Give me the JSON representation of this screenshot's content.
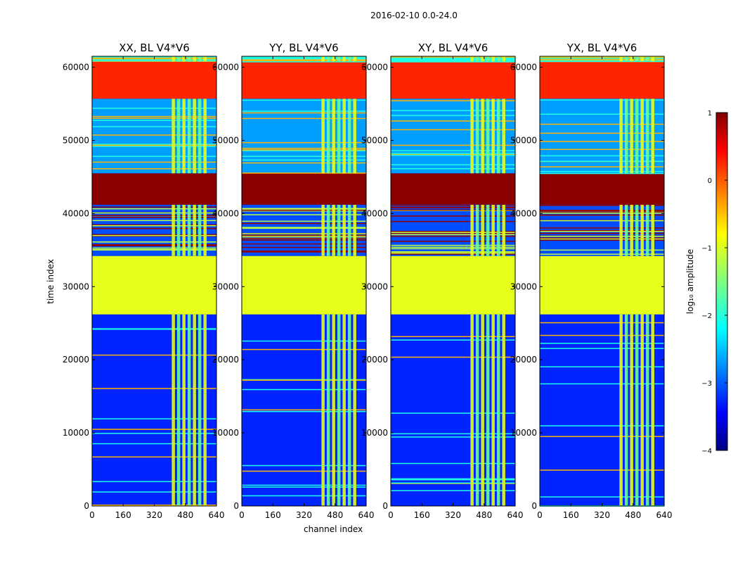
{
  "suptitle": "2016-02-10 0.0-24.0",
  "chart_data": {
    "type": "heatmap",
    "colormap": "jet",
    "xlabel": "channel index",
    "ylabel": "time index",
    "xlim": [
      0,
      640
    ],
    "ylim": [
      0,
      61500
    ],
    "xticks": [
      "0",
      "160",
      "320",
      "480",
      "640"
    ],
    "yticks": [
      "0",
      "10000",
      "20000",
      "30000",
      "40000",
      "50000",
      "60000"
    ],
    "panels": [
      {
        "title": "XX, BL V4*V6"
      },
      {
        "title": "YY, BL V4*V6"
      },
      {
        "title": "XY, BL V4*V6"
      },
      {
        "title": "YX, BL V4*V6"
      }
    ],
    "row_blocks": [
      {
        "from": 0,
        "to": 26200,
        "level": -3.2,
        "kind": "noisy"
      },
      {
        "from": 26200,
        "to": 34200,
        "level": -1.0,
        "kind": "flat"
      },
      {
        "from": 34200,
        "to": 41200,
        "level": -3.0,
        "kind": "striped"
      },
      {
        "from": 41200,
        "to": 45500,
        "level": 0.95,
        "kind": "flat"
      },
      {
        "from": 45500,
        "to": 55700,
        "level": -2.6,
        "kind": "noisy"
      },
      {
        "from": 55700,
        "to": 60800,
        "level": 0.2,
        "kind": "flat"
      },
      {
        "from": 60800,
        "to": 61500,
        "level": -1.0,
        "kind": "noisy"
      }
    ],
    "active_channel_range": [
      410,
      600
    ],
    "colorbar": {
      "label": "log₁₀ amplitude",
      "range": [
        -4,
        1
      ],
      "ticks": [
        "1",
        "0",
        "−1",
        "−2",
        "−3",
        "−4"
      ]
    }
  }
}
